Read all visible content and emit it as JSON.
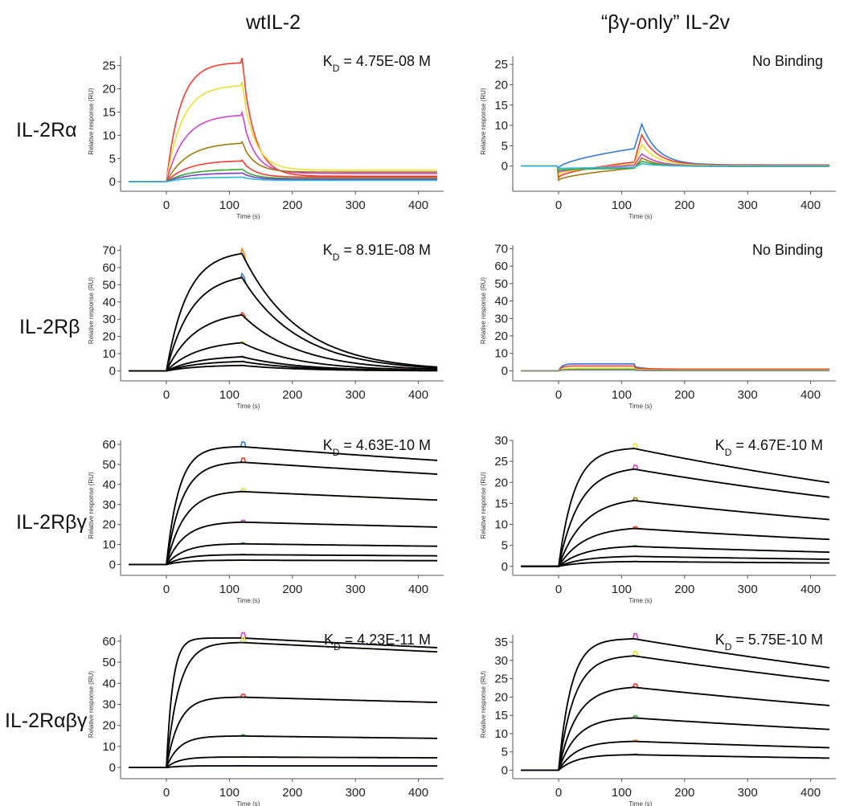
{
  "figure": {
    "columns": [
      "wtIL-2",
      "“βγ-only” IL-2v"
    ],
    "rows": [
      "IL-2Rα",
      "IL-2Rβ",
      "IL-2Rβγ",
      "IL-2Rαβγ"
    ]
  },
  "colors": {
    "red": "#f23c32",
    "yellow": "#e8e035",
    "magenta": "#cc44cc",
    "olive": "#a07a10",
    "orange": "#f08a28",
    "blue": "#3878d8",
    "green": "#38a838",
    "cyan": "#30b8d8",
    "purple": "#7a3ec8",
    "gray": "#888888",
    "fit": "#000000"
  },
  "chart_data": [
    {
      "type": "line",
      "row": 0,
      "col": 0,
      "annotation_html": "K<tspan baseline-shift='sub' font-size='12'>D</tspan> = 4.75E-08 M",
      "annotation_text": "KD = 4.75E-08 M",
      "xlabel": "Time (s)",
      "ylabel": "Relative response (RU)",
      "xlim": [
        -60,
        435
      ],
      "ylim": [
        -1,
        27
      ],
      "xticks": [
        0,
        100,
        200,
        300,
        400
      ],
      "yticks": [
        0,
        5,
        10,
        15,
        20,
        25
      ],
      "fit_lines": false,
      "series": [
        {
          "color": "red",
          "Req": 25.7,
          "kon": 0.045,
          "koff": 0.05,
          "base": 1.2
        },
        {
          "color": "yellow",
          "Req": 20.8,
          "kon": 0.04,
          "koff": 0.05,
          "base": 2.5
        },
        {
          "color": "magenta",
          "Req": 14.5,
          "kon": 0.035,
          "koff": 0.05,
          "base": 1.8
        },
        {
          "color": "olive",
          "Req": 8.5,
          "kon": 0.03,
          "koff": 0.05,
          "base": 2.1
        },
        {
          "color": "red",
          "Req": 4.6,
          "kon": 0.03,
          "koff": 0.05,
          "base": 1.0
        },
        {
          "color": "green",
          "Req": 2.7,
          "kon": 0.03,
          "koff": 0.05,
          "base": 0.7
        },
        {
          "color": "purple",
          "Req": 1.9,
          "kon": 0.03,
          "koff": 0.05,
          "base": 0.5
        },
        {
          "color": "cyan",
          "Req": 1.0,
          "kon": 0.03,
          "koff": 0.05,
          "base": 0.3
        }
      ]
    },
    {
      "type": "line",
      "row": 0,
      "col": 1,
      "annotation_html": "No Binding",
      "annotation_text": "No Binding",
      "xlabel": "Time (s)",
      "ylabel": "Relative response (RU)",
      "xlim": [
        -60,
        435
      ],
      "ylim": [
        -5,
        27
      ],
      "xticks": [
        0,
        100,
        200,
        300,
        400
      ],
      "yticks": [
        0,
        5,
        10,
        15,
        20,
        25
      ],
      "fit_lines": false,
      "series": [
        {
          "color": "blue",
          "assoc": [
            [
              0,
              -0.5
            ],
            [
              120,
              4.3
            ]
          ],
          "peak": 10.3,
          "koff": 0.04,
          "base": 0.3
        },
        {
          "color": "red",
          "assoc": [
            [
              0,
              -2.8
            ],
            [
              120,
              1.0
            ]
          ],
          "peak": 7.7,
          "koff": 0.04,
          "base": 0.2
        },
        {
          "color": "yellow",
          "assoc": [
            [
              0,
              -2.0
            ],
            [
              120,
              0.5
            ]
          ],
          "peak": 5.3,
          "koff": 0.04,
          "base": 0.1
        },
        {
          "color": "magenta",
          "assoc": [
            [
              0,
              -1.5
            ],
            [
              120,
              0.2
            ]
          ],
          "peak": 3.0,
          "koff": 0.04,
          "base": 0.0
        },
        {
          "color": "olive",
          "assoc": [
            [
              0,
              -3.5
            ],
            [
              120,
              -0.5
            ]
          ],
          "peak": 2.0,
          "koff": 0.04,
          "base": -0.1
        },
        {
          "color": "green",
          "assoc": [
            [
              0,
              -1.0
            ],
            [
              120,
              -0.5
            ]
          ],
          "peak": 1.2,
          "koff": 0.04,
          "base": 0.0
        },
        {
          "color": "cyan",
          "assoc": [
            [
              0,
              -0.6
            ],
            [
              120,
              -0.3
            ]
          ],
          "peak": 0.6,
          "koff": 0.04,
          "base": 0.0
        }
      ]
    },
    {
      "type": "line",
      "row": 1,
      "col": 0,
      "annotation_html": "K<tspan baseline-shift='sub' font-size='12'>D</tspan> = 8.91E-08 M",
      "annotation_text": "KD = 8.91E-08 M",
      "xlabel": "Time (s)",
      "ylabel": "Relative response (RU)",
      "xlim": [
        -60,
        435
      ],
      "ylim": [
        -3,
        73
      ],
      "xticks": [
        0,
        100,
        200,
        300,
        400
      ],
      "yticks": [
        0,
        10,
        20,
        30,
        40,
        50,
        60,
        70
      ],
      "fit_lines": true,
      "series": [
        {
          "color": "orange",
          "Req": 70,
          "kon": 0.03,
          "koff": 0.011
        },
        {
          "color": "blue",
          "Req": 57,
          "kon": 0.025,
          "koff": 0.011
        },
        {
          "color": "red",
          "Req": 35,
          "kon": 0.022,
          "koff": 0.011
        },
        {
          "color": "yellow",
          "Req": 18,
          "kon": 0.02,
          "koff": 0.011
        },
        {
          "color": "magenta",
          "Req": 9,
          "kon": 0.02,
          "koff": 0.011
        },
        {
          "color": "green",
          "Req": 6,
          "kon": 0.02,
          "koff": 0.011
        },
        {
          "color": "olive",
          "Req": 3.5,
          "kon": 0.02,
          "koff": 0.011
        }
      ]
    },
    {
      "type": "line",
      "row": 1,
      "col": 1,
      "annotation_html": "No Binding",
      "annotation_text": "No Binding",
      "xlabel": "Time (s)",
      "ylabel": "Relative response (RU)",
      "xlim": [
        -60,
        435
      ],
      "ylim": [
        -3,
        72
      ],
      "xticks": [
        0,
        100,
        200,
        300,
        400
      ],
      "yticks": [
        0,
        10,
        20,
        30,
        40,
        50,
        60,
        70
      ],
      "fit_lines": false,
      "series": [
        {
          "color": "blue",
          "flat_assoc": 4.0,
          "base": 0.8
        },
        {
          "color": "red",
          "flat_assoc": 2.8,
          "base": 1.0
        },
        {
          "color": "yellow",
          "flat_assoc": 1.5,
          "base": 0.4
        },
        {
          "color": "green",
          "flat_assoc": 0.8,
          "base": 0.2
        },
        {
          "color": "gray",
          "flat_assoc": 0.5,
          "base": 0.1
        }
      ]
    },
    {
      "type": "line",
      "row": 2,
      "col": 0,
      "annotation_html": "K<tspan baseline-shift='sub' font-size='12'>D</tspan> = 4.63E-10 M",
      "annotation_text": "KD = 4.63E-10 M",
      "xlabel": "Time (s)",
      "ylabel": "Relative response (RU)",
      "xlim": [
        -60,
        435
      ],
      "ylim": [
        -3,
        62
      ],
      "xticks": [
        0,
        100,
        200,
        300,
        400
      ],
      "yticks": [
        0,
        10,
        20,
        30,
        40,
        50,
        60
      ],
      "fit_lines": true,
      "series": [
        {
          "color": "blue",
          "Req": 59,
          "kon": 0.05,
          "koff": 0.0004
        },
        {
          "color": "red",
          "Req": 51.5,
          "kon": 0.04,
          "koff": 0.0004
        },
        {
          "color": "yellow",
          "Req": 37,
          "kon": 0.035,
          "koff": 0.0004
        },
        {
          "color": "magenta",
          "Req": 21.5,
          "kon": 0.035,
          "koff": 0.0004
        },
        {
          "color": "green",
          "Req": 10.5,
          "kon": 0.035,
          "koff": 0.0004
        },
        {
          "color": "purple",
          "Req": 5,
          "kon": 0.035,
          "koff": 0.0004
        },
        {
          "color": "olive",
          "Req": 2.2,
          "kon": 0.035,
          "koff": 0.0004
        }
      ]
    },
    {
      "type": "line",
      "row": 2,
      "col": 1,
      "annotation_html": "K<tspan baseline-shift='sub' font-size='12'>D</tspan> = 4.67E-10 M",
      "annotation_text": "KD = 4.67E-10 M",
      "xlabel": "Time (s)",
      "ylabel": "Relative response (RU)",
      "xlim": [
        -60,
        435
      ],
      "ylim": [
        -1,
        30
      ],
      "xticks": [
        0,
        100,
        200,
        300,
        400
      ],
      "yticks": [
        0,
        5,
        10,
        15,
        20,
        25,
        30
      ],
      "fit_lines": true,
      "series": [
        {
          "color": "yellow",
          "Req": 28.3,
          "kon": 0.04,
          "koff": 0.0011
        },
        {
          "color": "magenta",
          "Req": 23.8,
          "kon": 0.03,
          "koff": 0.0011
        },
        {
          "color": "olive",
          "Req": 16.5,
          "kon": 0.025,
          "koff": 0.0011
        },
        {
          "color": "red",
          "Req": 9.5,
          "kon": 0.025,
          "koff": 0.0011
        },
        {
          "color": "green",
          "Req": 5,
          "kon": 0.025,
          "koff": 0.0011
        },
        {
          "color": "orange",
          "Req": 2.5,
          "kon": 0.025,
          "koff": 0.0011
        },
        {
          "color": "blue",
          "Req": 1.2,
          "kon": 0.025,
          "koff": 0.0011
        }
      ]
    },
    {
      "type": "line",
      "row": 3,
      "col": 0,
      "annotation_html": "K<tspan baseline-shift='sub' font-size='12'>D</tspan> = 4.23E-11 M",
      "annotation_text": "KD = 4.23E-11 M",
      "xlabel": "Time (s)",
      "ylabel": "Relative response (RU)",
      "xlim": [
        -60,
        435
      ],
      "ylim": [
        -3,
        63
      ],
      "xticks": [
        0,
        100,
        200,
        300,
        400
      ],
      "yticks": [
        0,
        10,
        20,
        30,
        40,
        50,
        60
      ],
      "fit_lines": true,
      "series": [
        {
          "color": "magenta",
          "Req": 61.5,
          "kon": 0.1,
          "koff": 0.00025
        },
        {
          "color": "yellow",
          "Req": 59.5,
          "kon": 0.05,
          "koff": 0.00025
        },
        {
          "color": "red",
          "Req": 33.5,
          "kon": 0.05,
          "koff": 0.00025
        },
        {
          "color": "green",
          "Req": 15,
          "kon": 0.05,
          "koff": 0.00025
        },
        {
          "color": "orange",
          "Req": 5,
          "kon": 0.05,
          "koff": 0.00025
        },
        {
          "color": "blue",
          "Req": 0.8,
          "kon": 0.05,
          "koff": 0.00025
        }
      ]
    },
    {
      "type": "line",
      "row": 3,
      "col": 1,
      "annotation_html": "K<tspan baseline-shift='sub' font-size='12'>D</tspan> = 5.75E-10 M",
      "annotation_text": "KD = 5.75E-10 M",
      "xlabel": "Time (s)",
      "ylabel": "Relative response (RU)",
      "xlim": [
        -60,
        435
      ],
      "ylim": [
        -1,
        37
      ],
      "xticks": [
        0,
        100,
        200,
        300,
        400
      ],
      "yticks": [
        0,
        5,
        10,
        15,
        20,
        25,
        30,
        35
      ],
      "fit_lines": true,
      "series": [
        {
          "color": "magenta",
          "Req": 36,
          "kon": 0.05,
          "koff": 0.0008
        },
        {
          "color": "yellow",
          "Req": 31.5,
          "kon": 0.04,
          "koff": 0.0008
        },
        {
          "color": "red",
          "Req": 23,
          "kon": 0.035,
          "koff": 0.0008
        },
        {
          "color": "green",
          "Req": 14.5,
          "kon": 0.035,
          "koff": 0.0008
        },
        {
          "color": "orange",
          "Req": 8,
          "kon": 0.035,
          "koff": 0.0008
        },
        {
          "color": "blue",
          "Req": 4.3,
          "kon": 0.035,
          "koff": 0.0008
        }
      ]
    }
  ]
}
